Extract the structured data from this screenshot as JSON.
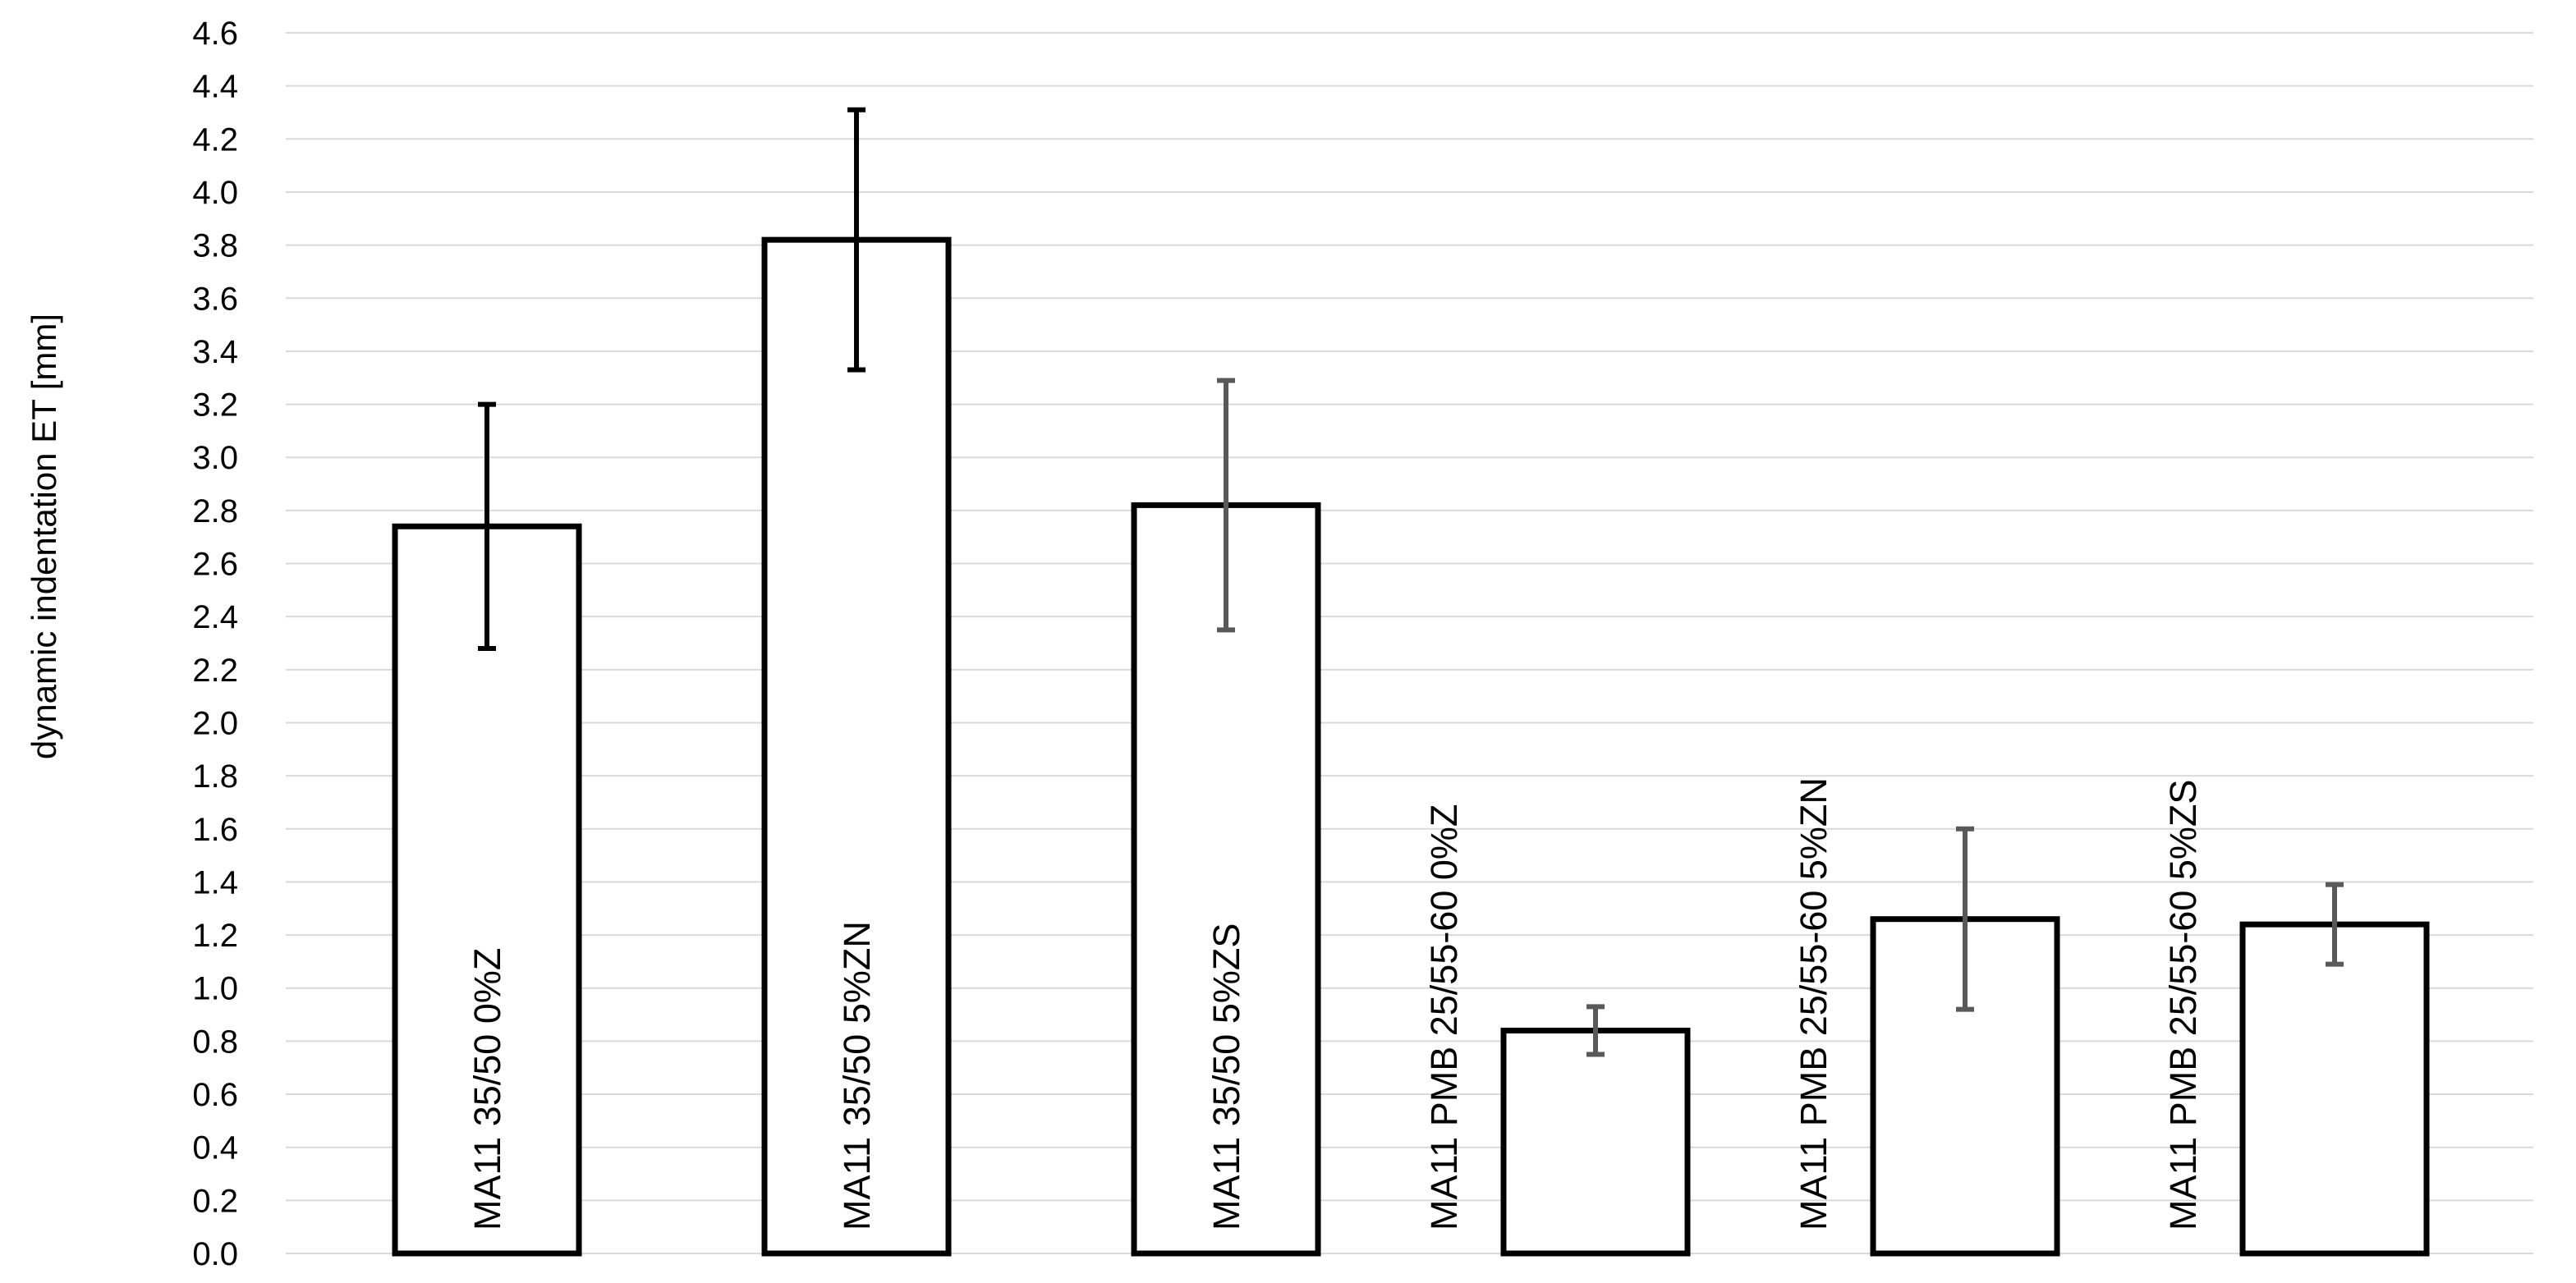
{
  "chart_data": {
    "type": "bar",
    "title": "",
    "xlabel": "",
    "ylabel": "dynamic indentation ET  [mm]",
    "ylim": [
      0,
      4.6
    ],
    "yticks": [
      "0.0",
      "0.2",
      "0.4",
      "0.6",
      "0.8",
      "1.0",
      "1.2",
      "1.4",
      "1.6",
      "1.8",
      "2.0",
      "2.2",
      "2.4",
      "2.6",
      "2.8",
      "3.0",
      "3.2",
      "3.4",
      "3.6",
      "3.8",
      "4.0",
      "4.2",
      "4.4",
      "4.6"
    ],
    "grid": true,
    "legend": "none",
    "categories": [
      "MA11 35/50 0%Z",
      "MA11 35/50 5%ZN",
      "MA11 35/50 5%ZS",
      "MA11 PMB 25/55-60 0%Z",
      "MA11 PMB 25/55-60 5%ZN",
      "MA11 PMB 25/55-60 5%ZS"
    ],
    "series": [
      {
        "values": [
          2.74,
          3.82,
          2.82,
          0.84,
          1.26,
          1.24
        ],
        "error_low": [
          2.28,
          3.33,
          2.35,
          0.75,
          0.92,
          1.09
        ],
        "error_high": [
          3.2,
          4.31,
          3.29,
          0.93,
          1.6,
          1.39
        ]
      }
    ],
    "colors": {
      "bar_fill": "#ffffff",
      "bar_stroke": "#000000",
      "grid": "#d9d9d9",
      "error_bar_dark": "#000000",
      "error_bar_gray": "#595959"
    }
  }
}
